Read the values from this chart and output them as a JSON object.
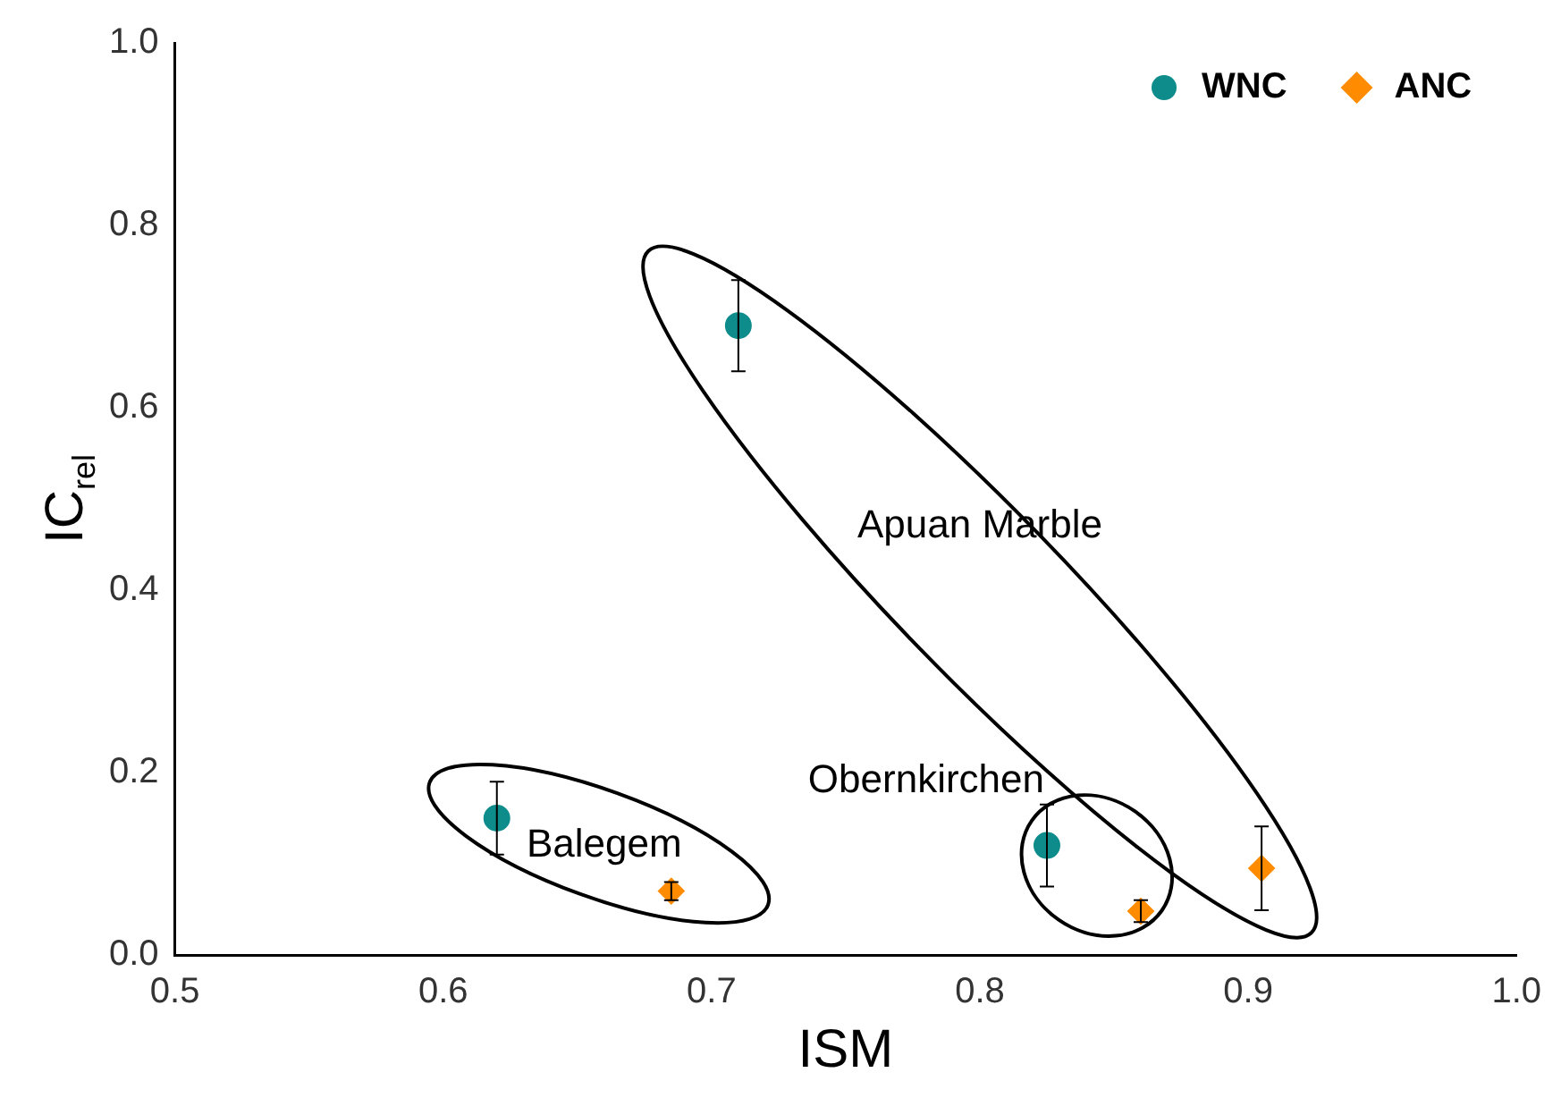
{
  "chart_data": {
    "type": "scatter",
    "xlabel": "ISM",
    "ylabel": "IC$_{rel}$",
    "xlim": [
      0.5,
      1.0
    ],
    "xticks": [
      0.5,
      0.6,
      0.7,
      0.8,
      0.9,
      {
        "value": 1,
        "label": "1.0"
      }
    ],
    "ylim": [
      0,
      1.0
    ],
    "yticks": [
      {
        "value": 0,
        "label": "0.0"
      },
      0.2,
      0.4,
      0.6,
      0.8,
      {
        "value": 1,
        "label": "1.0"
      }
    ],
    "grid": false,
    "legend": "top right",
    "series": [
      {
        "name": "WNC",
        "color": "#0e8c8c",
        "marker": "circle",
        "x": [
          0.62,
          0.71,
          0.825
        ],
        "values": [
          0.15,
          0.69,
          0.12
        ],
        "errors": [
          0.04,
          0.05,
          0.045
        ]
      },
      {
        "name": "ANC",
        "color": "#ff8c00",
        "marker": "diamond",
        "x": [
          0.685,
          0.86,
          0.905
        ],
        "values": [
          0.07,
          0.048,
          0.095
        ],
        "errors": [
          0.01,
          0.012,
          0.046
        ]
      }
    ],
    "annotations": [
      "Apuan Marble",
      "Obernkirchen",
      "Balegem"
    ]
  }
}
